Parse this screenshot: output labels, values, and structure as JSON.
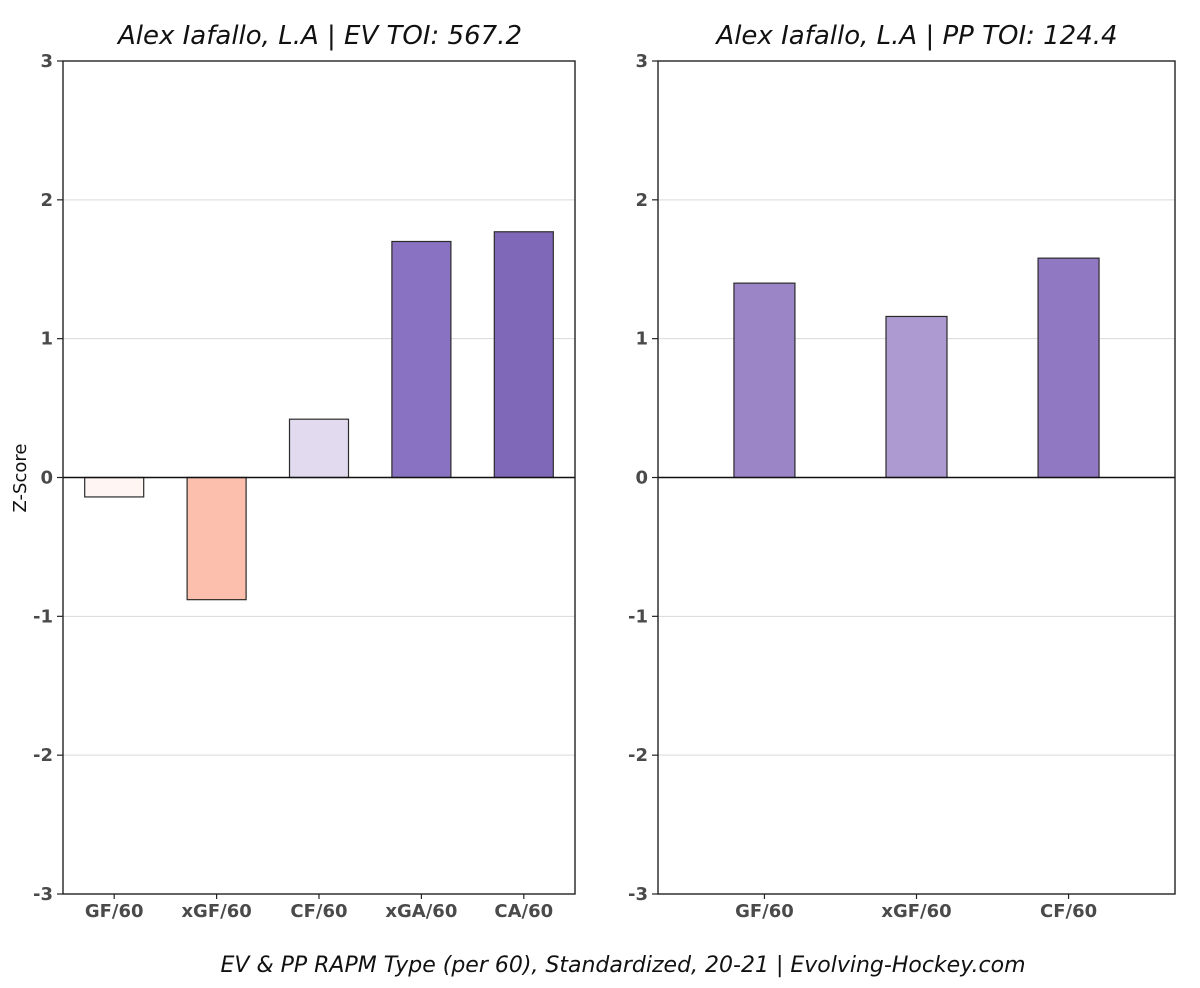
{
  "caption": "EV & PP RAPM Type (per 60), Standardized, 20-21    |    Evolving-Hockey.com",
  "colors": {
    "grid": "#d9d9d9",
    "frame": "#222222",
    "zero_line": "#111111",
    "bar_edge": "#2b2b2b"
  },
  "chart_data": [
    {
      "type": "bar",
      "title": "Alex Iafallo, L.A  |  EV TOI: 567.2",
      "xlabel": "",
      "ylabel": "Z-Score",
      "ylim": [
        -3,
        3
      ],
      "yticks": [
        -3,
        -2,
        -1,
        0,
        1,
        2,
        3
      ],
      "grid": true,
      "categories": [
        "GF/60",
        "xGF/60",
        "CF/60",
        "xGA/60",
        "CA/60"
      ],
      "values": [
        -0.14,
        -0.88,
        0.42,
        1.7,
        1.77
      ],
      "colors": [
        "#fff5f2",
        "#fcbfae",
        "#e2daef",
        "#8872c1",
        "#8068b9"
      ]
    },
    {
      "type": "bar",
      "title": "Alex Iafallo, L.A  |  PP TOI: 124.4",
      "xlabel": "",
      "ylabel": "",
      "ylim": [
        -3,
        3
      ],
      "yticks": [
        -3,
        -2,
        -1,
        0,
        1,
        2,
        3
      ],
      "grid": true,
      "categories": [
        "GF/60",
        "xGF/60",
        "CF/60"
      ],
      "values": [
        1.4,
        1.16,
        1.58
      ],
      "colors": [
        "#9c85c6",
        "#ad9ad0",
        "#9178c3"
      ]
    }
  ]
}
